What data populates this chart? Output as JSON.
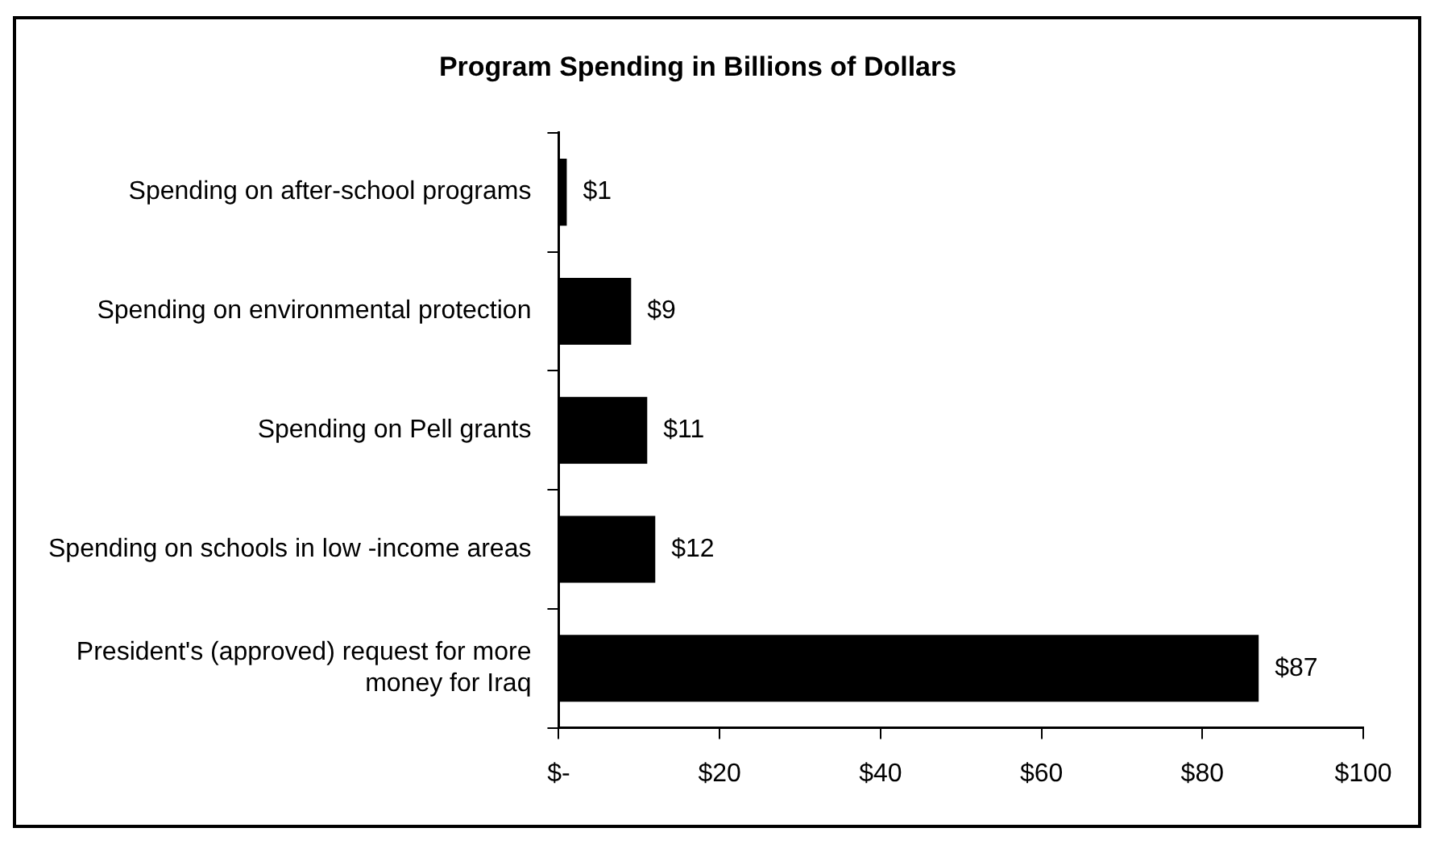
{
  "chart_data": {
    "type": "bar",
    "orientation": "horizontal",
    "title": "Program Spending in Billions of Dollars",
    "categories": [
      "Spending on after-school programs",
      "Spending on environmental protection",
      "Spending on Pell grants",
      "Spending on schools in low -income areas",
      "President's (approved) request for more money for Iraq"
    ],
    "values": [
      1,
      9,
      11,
      12,
      87
    ],
    "color": "#000000",
    "value_labels": [
      "$1",
      "$9",
      "$11",
      "$12",
      "$87"
    ],
    "xlim": [
      0,
      100
    ],
    "xticks": [
      {
        "value": 0,
        "label": "$-"
      },
      {
        "value": 20,
        "label": "$20"
      },
      {
        "value": 40,
        "label": "$40"
      },
      {
        "value": 60,
        "label": "$60"
      },
      {
        "value": 80,
        "label": "$80"
      },
      {
        "value": 100,
        "label": "$100"
      }
    ],
    "grid": false,
    "legend": false
  }
}
